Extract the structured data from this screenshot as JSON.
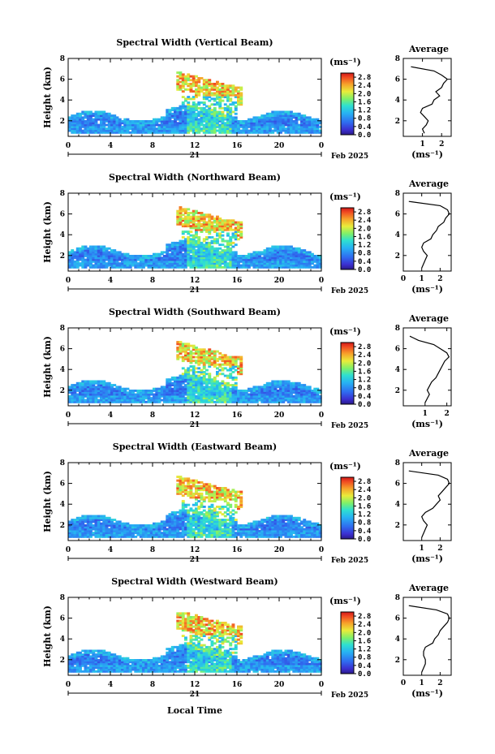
{
  "chart_data": [
    {
      "type": "heatmap",
      "title": "Spectral Width (Vertical Beam)",
      "ylabel": "Height (km)",
      "xticks": [
        "0",
        "4",
        "8",
        "12",
        "16",
        "20",
        "0"
      ],
      "yticks": [
        "2",
        "4",
        "6",
        "8"
      ],
      "xlim": [
        0,
        24
      ],
      "ylim": [
        0.5,
        8
      ],
      "date_day": "21",
      "date_month_year": "Feb 2025",
      "colorbar": {
        "unit": "(ms⁻¹)",
        "ticks": [
          "0.0",
          "0.4",
          "0.8",
          "1.2",
          "1.6",
          "2.0",
          "2.4",
          "2.8"
        ],
        "range": [
          0,
          3.0
        ]
      },
      "average": {
        "title": "Average",
        "xlabel": "(ms⁻¹)",
        "xticks": [
          "1",
          "2"
        ],
        "xlim": [
          0,
          2.5
        ],
        "yticks": [
          "2",
          "4",
          "6",
          "8"
        ],
        "height": [
          0.8,
          1.2,
          1.6,
          2.0,
          2.4,
          2.8,
          3.2,
          3.6,
          4.0,
          4.4,
          4.8,
          5.2,
          5.6,
          6.0,
          6.4,
          6.8,
          7.2
        ],
        "width": [
          1.1,
          1.0,
          1.2,
          1.3,
          1.1,
          0.9,
          1.0,
          1.5,
          1.6,
          1.9,
          1.7,
          2.0,
          2.1,
          2.3,
          2.0,
          1.6,
          0.4
        ]
      }
    },
    {
      "type": "heatmap",
      "title": "Spectral Width (Northward Beam)",
      "ylabel": "Height (km)",
      "xticks": [
        "0",
        "4",
        "8",
        "12",
        "16",
        "20",
        "0"
      ],
      "yticks": [
        "2",
        "4",
        "6",
        "8"
      ],
      "xlim": [
        0,
        24
      ],
      "ylim": [
        0.5,
        8
      ],
      "date_day": "21",
      "date_month_year": "Feb 2025",
      "colorbar": {
        "unit": "(ms⁻¹)",
        "ticks": [
          "0.0",
          "0.4",
          "0.8",
          "1.2",
          "1.6",
          "2.0",
          "2.4",
          "2.8"
        ],
        "range": [
          0,
          3.0
        ]
      },
      "average": {
        "title": "Average",
        "xlabel": "(ms⁻¹)",
        "xticks": [
          "0",
          "1",
          "2"
        ],
        "xlim": [
          0,
          2.6
        ],
        "yticks": [
          "2",
          "4",
          "6",
          "8"
        ],
        "height": [
          0.8,
          1.2,
          1.6,
          2.0,
          2.4,
          2.8,
          3.2,
          3.6,
          4.0,
          4.4,
          4.8,
          5.2,
          5.6,
          6.0,
          6.4,
          6.8,
          7.2
        ],
        "width": [
          1.0,
          1.1,
          1.2,
          1.3,
          1.1,
          1.0,
          1.1,
          1.5,
          1.6,
          1.8,
          1.9,
          2.2,
          2.3,
          2.5,
          2.4,
          2.0,
          0.3
        ]
      }
    },
    {
      "type": "heatmap",
      "title": "Spectral Width (Southward Beam)",
      "ylabel": "Height (km)",
      "xticks": [
        "0",
        "4",
        "8",
        "12",
        "16",
        "20",
        "0"
      ],
      "yticks": [
        "2",
        "4",
        "6",
        "8"
      ],
      "xlim": [
        0,
        24
      ],
      "ylim": [
        0.5,
        8
      ],
      "date_day": "21",
      "date_month_year": "Feb 2025",
      "colorbar": {
        "unit": "(ms⁻¹)",
        "ticks": [
          "0.0",
          "0.4",
          "0.8",
          "1.2",
          "1.6",
          "2.0",
          "2.4",
          "2.8"
        ],
        "range": [
          0,
          3.0
        ]
      },
      "average": {
        "title": "Average",
        "xlabel": "(ms⁻¹)",
        "xticks": [
          "1",
          "2"
        ],
        "xlim": [
          0,
          2.2
        ],
        "yticks": [
          "2",
          "4",
          "6",
          "8"
        ],
        "height": [
          0.8,
          1.2,
          1.6,
          2.0,
          2.4,
          2.8,
          3.2,
          3.6,
          4.0,
          4.4,
          4.8,
          5.2,
          5.6,
          6.0,
          6.4,
          6.8,
          7.2
        ],
        "width": [
          1.0,
          1.1,
          1.2,
          1.1,
          1.2,
          1.3,
          1.5,
          1.6,
          1.7,
          1.8,
          1.9,
          2.1,
          2.0,
          1.7,
          1.4,
          0.7,
          0.3
        ]
      }
    },
    {
      "type": "heatmap",
      "title": "Spectral Width (Eastward Beam)",
      "ylabel": "Height (km)",
      "xticks": [
        "0",
        "4",
        "8",
        "12",
        "16",
        "20",
        "0"
      ],
      "yticks": [
        "2",
        "4",
        "6",
        "8"
      ],
      "xlim": [
        0,
        24
      ],
      "ylim": [
        0.5,
        8
      ],
      "date_day": "21",
      "date_month_year": "Feb 2025",
      "colorbar": {
        "unit": "(ms⁻¹)",
        "ticks": [
          "0.0",
          "0.4",
          "0.8",
          "1.2",
          "1.6",
          "2.0",
          "2.4",
          "2.8"
        ],
        "range": [
          0,
          3.0
        ]
      },
      "average": {
        "title": "Average",
        "xlabel": "(ms⁻¹)",
        "xticks": [
          "1",
          "2"
        ],
        "xlim": [
          0,
          2.6
        ],
        "yticks": [
          "2",
          "4",
          "6",
          "8"
        ],
        "height": [
          0.8,
          1.2,
          1.6,
          2.0,
          2.4,
          2.8,
          3.2,
          3.6,
          4.0,
          4.4,
          4.8,
          5.2,
          5.6,
          6.0,
          6.4,
          6.8,
          7.2
        ],
        "width": [
          1.0,
          1.1,
          1.2,
          1.3,
          1.1,
          1.0,
          1.2,
          1.6,
          1.8,
          2.0,
          1.9,
          2.1,
          2.3,
          2.5,
          2.4,
          1.9,
          0.3
        ]
      }
    },
    {
      "type": "heatmap",
      "title": "Spectral Width (Westward Beam)",
      "ylabel": "Height (km)",
      "xticks": [
        "0",
        "4",
        "8",
        "12",
        "16",
        "20",
        "0"
      ],
      "yticks": [
        "2",
        "4",
        "6",
        "8"
      ],
      "xlim": [
        0,
        24
      ],
      "ylim": [
        0.5,
        8
      ],
      "date_day": "21",
      "date_month_year": "Feb 2025",
      "colorbar": {
        "unit": "(ms⁻¹)",
        "ticks": [
          "0.0",
          "0.4",
          "0.8",
          "1.2",
          "1.6",
          "2.0",
          "2.4",
          "2.8"
        ],
        "range": [
          0,
          3.0
        ]
      },
      "average": {
        "title": "Average",
        "xlabel": "(ms⁻¹)",
        "xticks": [
          "0",
          "1",
          "2"
        ],
        "xlim": [
          0,
          2.6
        ],
        "yticks": [
          "2",
          "4",
          "6",
          "8"
        ],
        "height": [
          0.8,
          1.2,
          1.6,
          2.0,
          2.4,
          2.8,
          3.2,
          3.6,
          4.0,
          4.4,
          4.8,
          5.2,
          5.6,
          6.0,
          6.4,
          6.8,
          7.2
        ],
        "width": [
          1.0,
          1.1,
          1.2,
          1.2,
          1.1,
          1.1,
          1.2,
          1.6,
          1.7,
          1.9,
          2.0,
          2.2,
          2.4,
          2.5,
          2.4,
          1.8,
          0.3
        ]
      }
    }
  ],
  "xlabel": "Local Time"
}
